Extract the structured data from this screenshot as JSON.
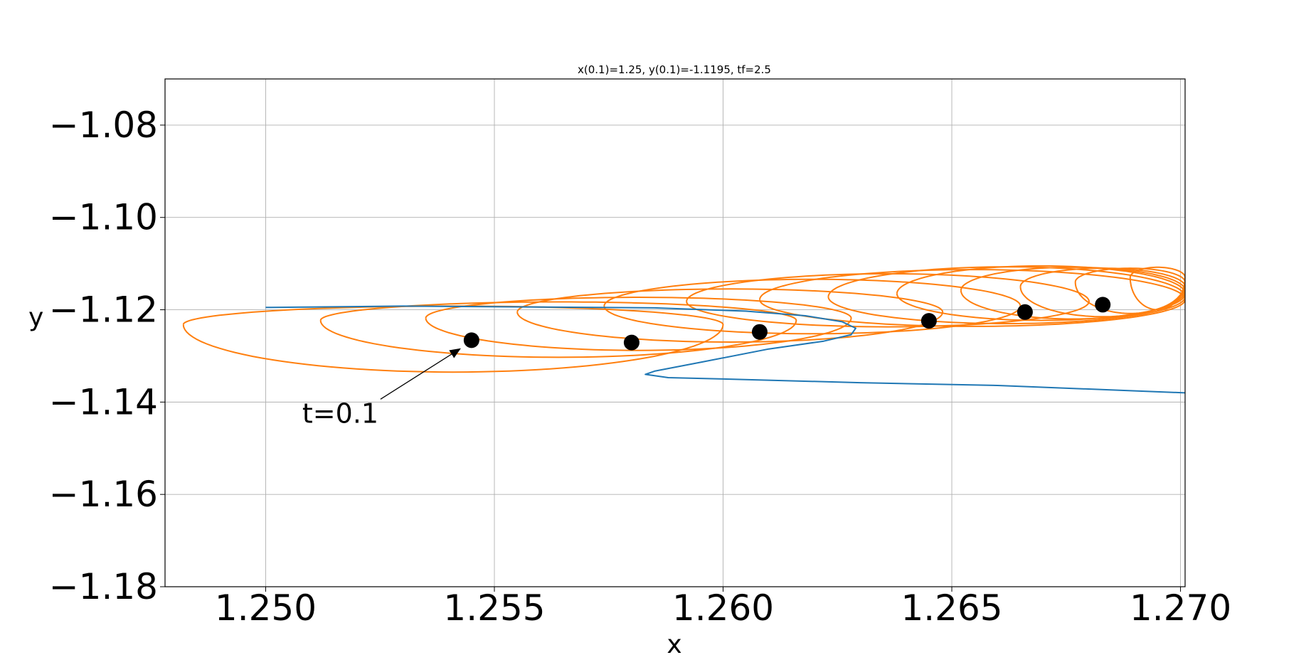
{
  "chart_data": {
    "type": "line",
    "title": "x(0.1)=1.25, y(0.1)=-1.1195, tf=2.5",
    "xlabel": "x",
    "ylabel": "y",
    "xlim": [
      1.2478,
      1.2701
    ],
    "ylim": [
      -1.18,
      -1.07
    ],
    "xticks": [
      1.25,
      1.255,
      1.26,
      1.265,
      1.27
    ],
    "xtick_labels": [
      "1.250",
      "1.255",
      "1.260",
      "1.265",
      "1.270"
    ],
    "yticks": [
      -1.08,
      -1.1,
      -1.12,
      -1.14,
      -1.16,
      -1.18
    ],
    "ytick_labels": [
      "−1.08",
      "−1.10",
      "−1.12",
      "−1.14",
      "−1.16",
      "−1.18"
    ],
    "grid": true,
    "colors": {
      "trajectory": "#1f77b4",
      "ensemble": "#ff7f0e",
      "points": "#000000"
    },
    "series": [
      {
        "color": "#1f77b4",
        "x": [
          1.25,
          1.253,
          1.256,
          1.2585,
          1.2605,
          1.2618,
          1.2626,
          1.2629,
          1.2628,
          1.2622,
          1.261,
          1.2595,
          1.2585,
          1.2583,
          1.2588,
          1.26,
          1.263,
          1.266,
          1.2701
        ],
        "y": [
          -1.1195,
          -1.1192,
          -1.1194,
          -1.1196,
          -1.1203,
          -1.1213,
          -1.1226,
          -1.124,
          -1.1254,
          -1.1268,
          -1.1285,
          -1.1314,
          -1.1333,
          -1.134,
          -1.1347,
          -1.135,
          -1.1358,
          -1.1364,
          -1.138
        ]
      },
      {
        "color": "#ff7f0e",
        "loops": [
          {
            "left": 1.2482,
            "right": 1.26,
            "cy": -1.1232,
            "ry_top": 0.004,
            "ry_bot": 0.0103
          },
          {
            "left": 1.2512,
            "right": 1.2616,
            "cy": -1.1223,
            "ry_top": 0.004,
            "ry_bot": 0.008
          },
          {
            "left": 1.2535,
            "right": 1.2628,
            "cy": -1.1218,
            "ry_top": 0.0045,
            "ry_bot": 0.007
          },
          {
            "left": 1.2555,
            "right": 1.2648,
            "cy": -1.1205,
            "ry_top": 0.005,
            "ry_bot": 0.0065
          },
          {
            "left": 1.2574,
            "right": 1.2665,
            "cy": -1.1192,
            "ry_top": 0.0058,
            "ry_bot": 0.006
          },
          {
            "left": 1.2592,
            "right": 1.268,
            "cy": -1.1182,
            "ry_top": 0.006,
            "ry_bot": 0.0055
          },
          {
            "left": 1.2608,
            "right": 1.2701,
            "cy": -1.1178,
            "ry_top": 0.0065,
            "ry_bot": 0.0058
          },
          {
            "left": 1.2623,
            "right": 1.2701,
            "cy": -1.1172,
            "ry_top": 0.0065,
            "ry_bot": 0.0058
          },
          {
            "left": 1.2638,
            "right": 1.2701,
            "cy": -1.1165,
            "ry_top": 0.006,
            "ry_bot": 0.0058
          },
          {
            "left": 1.2652,
            "right": 1.2701,
            "cy": -1.1158,
            "ry_top": 0.005,
            "ry_bot": 0.0062
          },
          {
            "left": 1.2665,
            "right": 1.2701,
            "cy": -1.115,
            "ry_top": 0.004,
            "ry_bot": 0.0065
          },
          {
            "left": 1.2677,
            "right": 1.2701,
            "cy": -1.114,
            "ry_top": 0.003,
            "ry_bot": 0.0068
          },
          {
            "left": 1.2689,
            "right": 1.2701,
            "cy": -1.113,
            "ry_top": 0.0022,
            "ry_bot": 0.007
          }
        ]
      }
    ],
    "points": {
      "x": [
        1.2545,
        1.258,
        1.2608,
        1.2645,
        1.2666,
        1.2683
      ],
      "y": [
        -1.1266,
        -1.1271,
        -1.1248,
        -1.1224,
        -1.1205,
        -1.1189
      ]
    },
    "annotation": {
      "text": "t=0.1",
      "x": 1.2545,
      "y": -1.1266,
      "text_x": 1.2508,
      "text_y": -1.142
    }
  }
}
